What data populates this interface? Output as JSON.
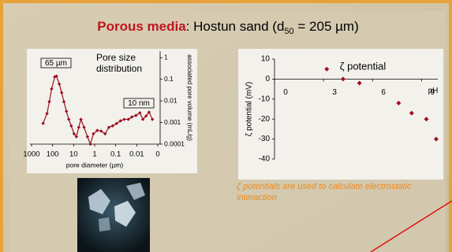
{
  "title": {
    "bold": "Porous media",
    "rest": ": Hostun sand (d",
    "sub": "50",
    "end": " = 205 µm)"
  },
  "chart_data": [
    {
      "type": "line",
      "title": "Pore size distribution",
      "xlabel": "pore diameter (µm)",
      "ylabel": "associated pore volume (mL/g)",
      "annotations": [
        "65 µm",
        "10 nm"
      ],
      "xscale": "log",
      "yscale": "log",
      "xlim": [
        1000,
        0.001
      ],
      "ylim": [
        0.0001,
        2
      ],
      "xticks": [
        1000,
        100,
        10,
        1,
        0.1,
        0.01,
        {
          "value": 0.001,
          "label": "0"
        }
      ],
      "yticks": [
        1,
        0.1,
        0.01,
        0.001,
        0.0001
      ],
      "x": [
        282,
        184,
        143,
        111,
        79,
        65,
        48,
        37,
        29,
        22,
        17,
        13,
        9.5,
        7.4,
        5.7,
        4.5,
        3.2,
        2.2,
        1.6,
        1.15,
        0.75,
        0.49,
        0.32,
        0.21,
        0.14,
        0.091,
        0.059,
        0.039,
        0.025,
        0.017,
        0.011,
        0.0071,
        0.0051,
        0.0036,
        0.0026,
        0.0018
      ],
      "series": [
        {
          "color": "#9b1020",
          "values": [
            0.00091,
            0.0026,
            0.0092,
            0.036,
            0.13,
            0.14,
            0.06,
            0.024,
            0.0092,
            0.0033,
            0.0014,
            0.0007,
            0.0003,
            0.00022,
            0.0006,
            0.0014,
            0.0006,
            0.00022,
            0.0001,
            0.0003,
            0.00043,
            0.0004,
            0.0003,
            0.0006,
            0.0007,
            0.0009,
            0.0012,
            0.0014,
            0.0014,
            0.0018,
            0.0021,
            0.0028,
            0.0014,
            0.002,
            0.003,
            0.0014
          ]
        }
      ]
    },
    {
      "type": "scatter",
      "title": "ζ potential",
      "xlabel": "pH",
      "ylabel": "ζ potential (mV)",
      "xlim": [
        0,
        10
      ],
      "ylim": [
        -40,
        10
      ],
      "xticks": [
        0,
        3,
        6,
        9
      ],
      "yticks": [
        10,
        0,
        -10,
        -20,
        -30,
        -40
      ],
      "x": [
        3.2,
        4.2,
        5.2,
        7.6,
        8.4,
        9.3,
        9.9
      ],
      "series": [
        {
          "color": "#9b1020",
          "values": [
            5,
            0,
            -2,
            -12,
            -17,
            -20,
            -30
          ]
        }
      ]
    }
  ],
  "caption": "ζ potentials are used to calculate electrostatic interaction"
}
